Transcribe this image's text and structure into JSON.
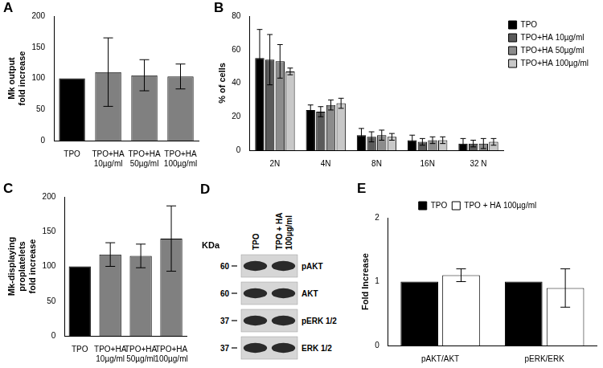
{
  "chart_data": [
    {
      "type": "bar",
      "title": "A",
      "categories": [
        "TPO",
        "TPO+HA 10µg/ml",
        "TPO+HA 50µg/ml",
        "TPO+HA 100µg/ml"
      ],
      "values": [
        100,
        110,
        105,
        103
      ],
      "errors": [
        null,
        55,
        25,
        20
      ],
      "colors": [
        "#000000",
        "#808080",
        "#808080",
        "#808080"
      ],
      "ylabel": [
        "Mk output",
        "fold increase"
      ],
      "ylim": [
        0,
        200
      ],
      "yticks": [
        0,
        50,
        100,
        150,
        200
      ],
      "grid": false
    },
    {
      "type": "bar",
      "title": "B",
      "categories": [
        "2N",
        "4N",
        "8N",
        "16N",
        "32 N"
      ],
      "series": [
        {
          "name": "TPO",
          "color": "#000000",
          "values": [
            55,
            24,
            9,
            6,
            4
          ],
          "errors": [
            17,
            3,
            4,
            3,
            3
          ]
        },
        {
          "name": "TPO+HA 10µg/ml",
          "color": "#5a5a5a",
          "values": [
            54,
            23,
            8,
            5,
            4
          ],
          "errors": [
            15,
            3,
            3,
            2,
            2
          ]
        },
        {
          "name": "TPO+HA 50µg/ml",
          "color": "#8c8c8c",
          "values": [
            53,
            27,
            9,
            6,
            4
          ],
          "errors": [
            10,
            3,
            3,
            2,
            3
          ]
        },
        {
          "name": "TPO+HA 100µg/ml",
          "color": "#c8c8c8",
          "values": [
            47,
            28,
            8,
            6,
            5
          ],
          "errors": [
            2,
            3,
            2,
            2,
            2
          ]
        }
      ],
      "ylabel": [
        "% of cells"
      ],
      "ylim": [
        0,
        80
      ],
      "yticks": [
        0,
        20,
        40,
        60,
        80
      ],
      "grid": false,
      "legend": "upper right"
    },
    {
      "type": "bar",
      "title": "C",
      "categories": [
        "TPO",
        "TPO+HA 10µg/ml",
        "TPO+HA 50µg/ml",
        "TPO+HA 100µg/ml"
      ],
      "values": [
        100,
        117,
        115,
        140
      ],
      "errors": [
        null,
        17,
        17,
        47
      ],
      "colors": [
        "#000000",
        "#808080",
        "#808080",
        "#808080"
      ],
      "ylabel": [
        "Mk-displaying",
        "proplatelets",
        "fold increase"
      ],
      "ylim": [
        0,
        200
      ],
      "yticks": [
        0,
        50,
        100,
        150,
        200
      ],
      "grid": false
    },
    {
      "type": "bar",
      "title": "E",
      "categories": [
        "pAKT/AKT",
        "pERK/ERK"
      ],
      "series": [
        {
          "name": "TPO",
          "color": "#000000",
          "values": [
            1,
            1
          ],
          "errors": [
            null,
            null
          ]
        },
        {
          "name": "TPO + HA 100µg/ml",
          "color": "#ffffff",
          "values": [
            1.1,
            0.9
          ],
          "errors": [
            0.1,
            0.3
          ]
        }
      ],
      "ylabel": [
        "Fold Increase"
      ],
      "ylim": [
        0,
        2
      ],
      "yticks": [
        0,
        1,
        2
      ],
      "grid": false,
      "legend": "top"
    }
  ],
  "blot": {
    "title": "D",
    "unit": "KDa",
    "lanes": [
      "TPO",
      "TPO + HA 100µg/ml"
    ],
    "rows": [
      {
        "marker": 60,
        "label": "pAKT"
      },
      {
        "marker": 60,
        "label": "AKT"
      },
      {
        "marker": 37,
        "label": "pERK 1/2"
      },
      {
        "marker": 37,
        "label": "ERK 1/2"
      }
    ]
  }
}
